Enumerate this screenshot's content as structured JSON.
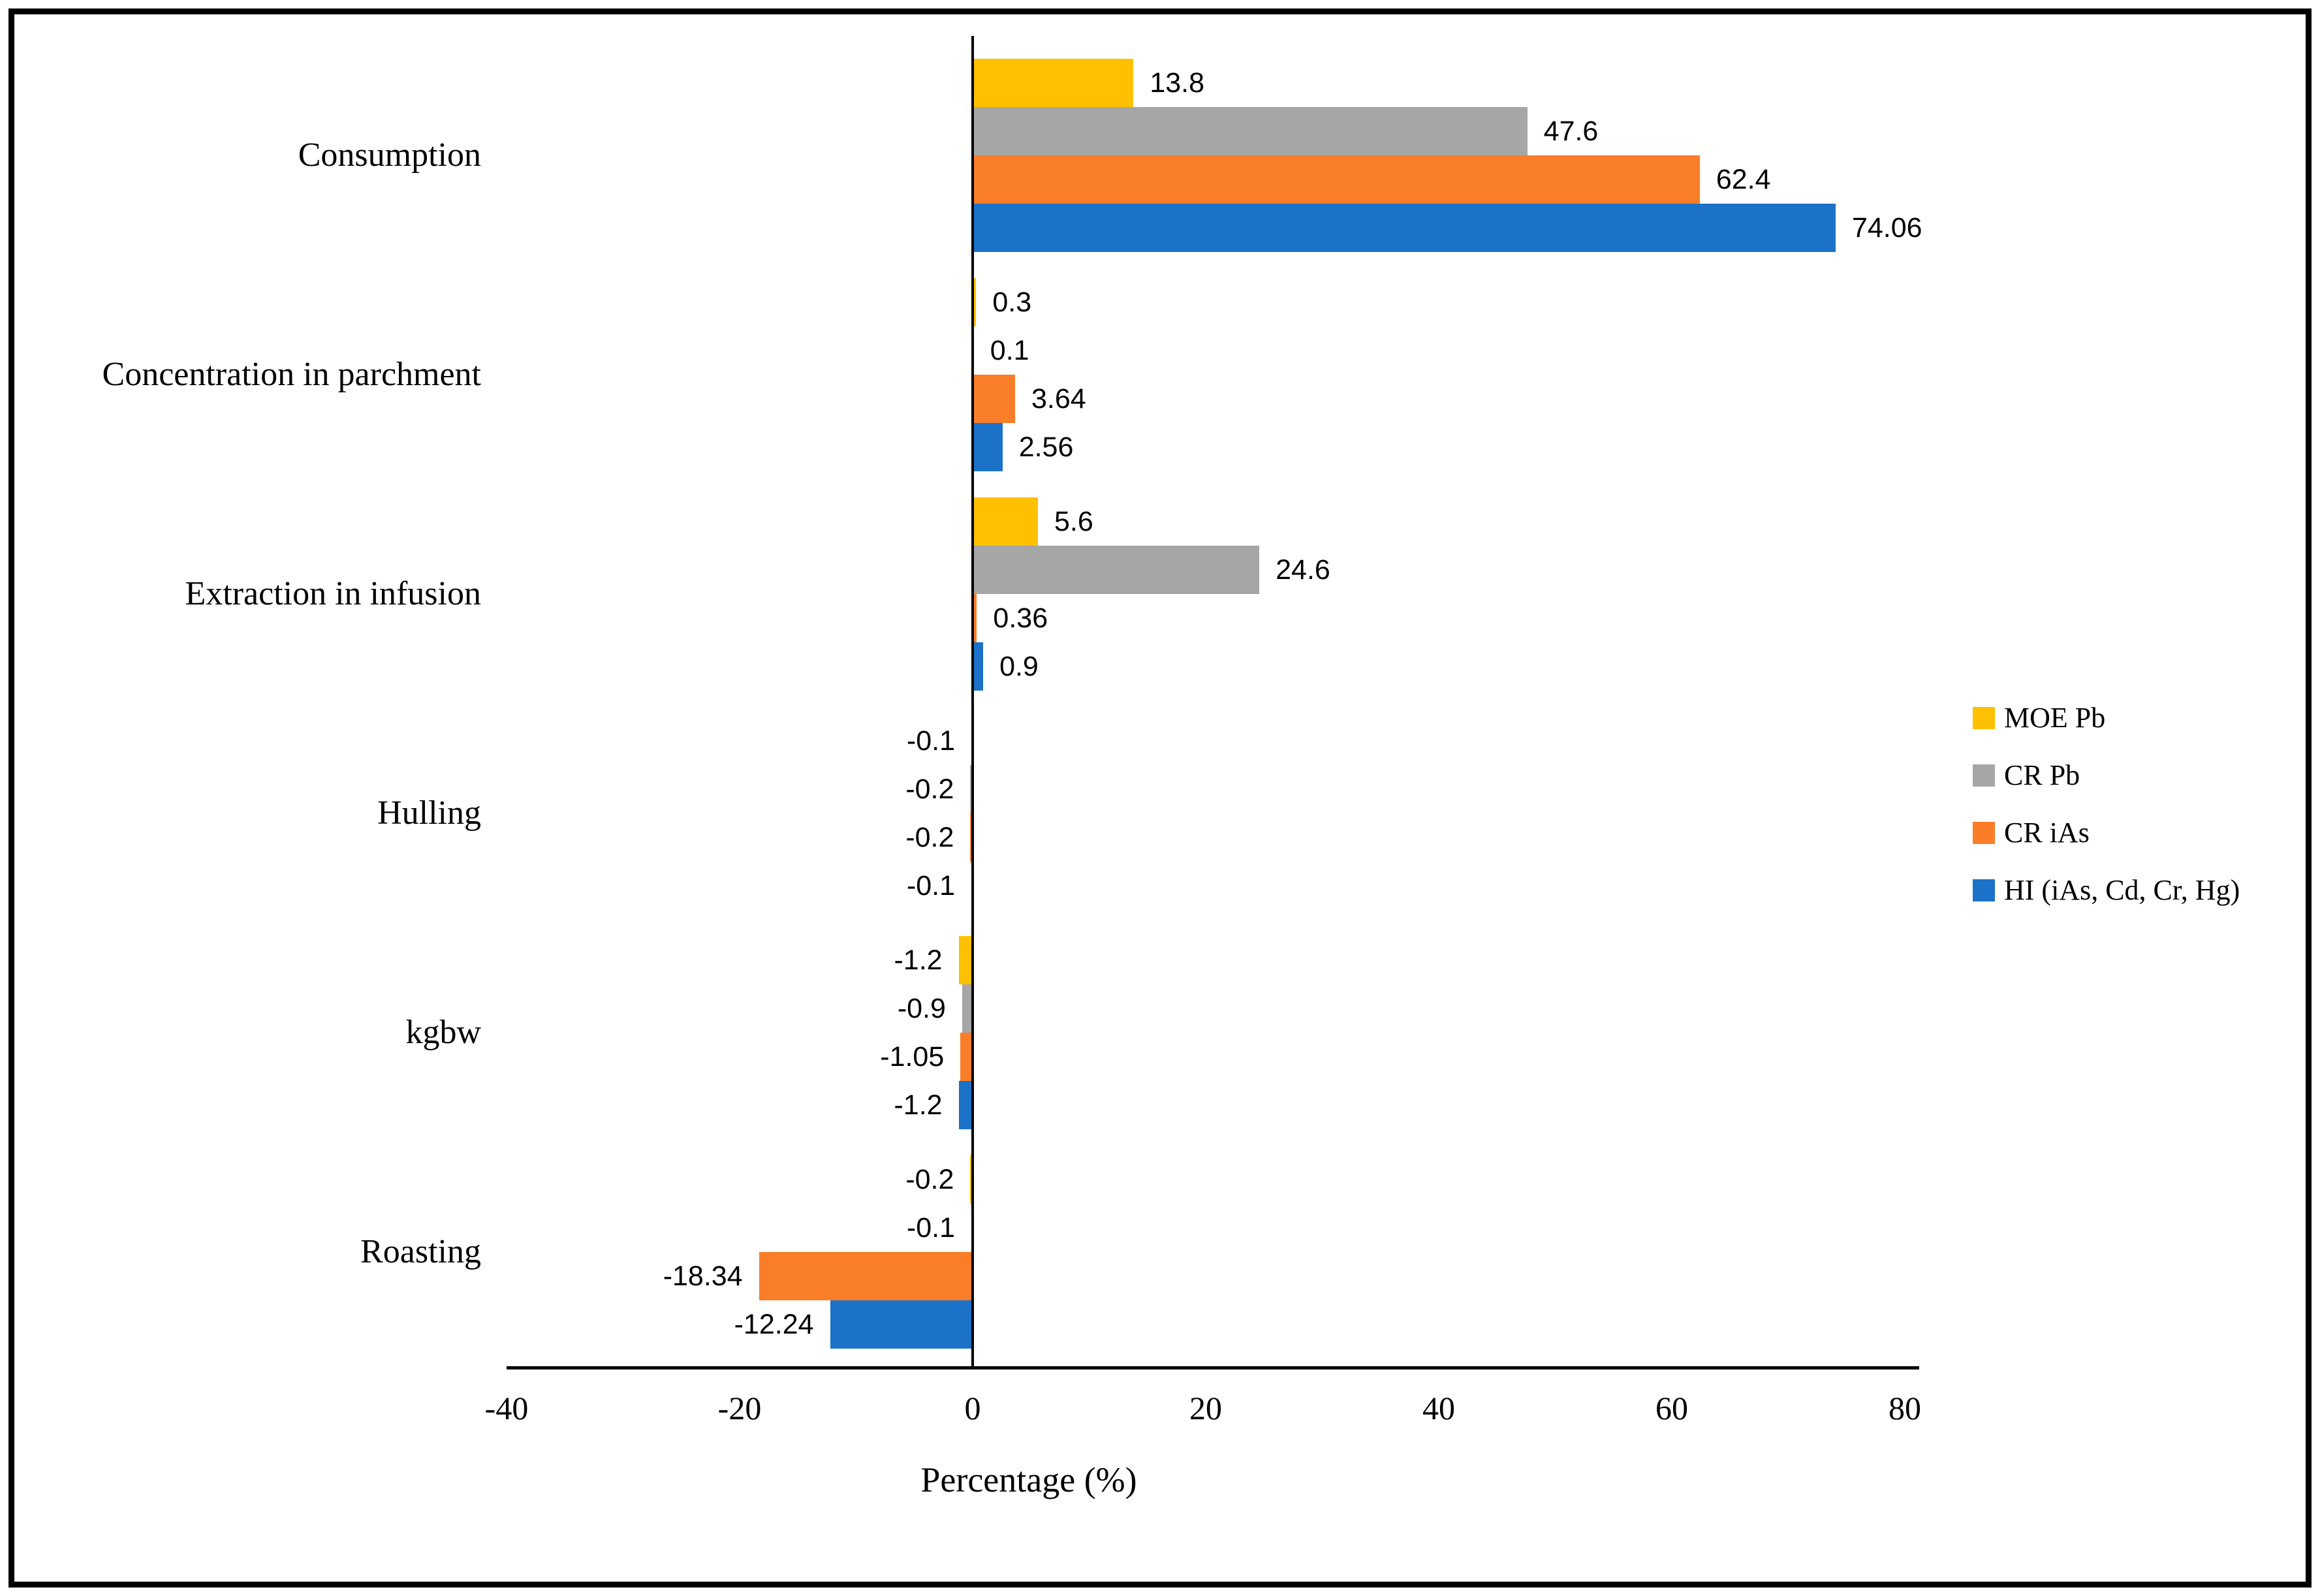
{
  "chart_data": {
    "type": "bar",
    "orientation": "horizontal",
    "title": "",
    "xlabel": "Percentage (%)",
    "ylabel": "",
    "xlim": [
      -40,
      80
    ],
    "x_ticks": [
      -40,
      -20,
      0,
      20,
      40,
      60,
      80
    ],
    "grid": false,
    "legend_position": "right",
    "categories": [
      "Consumption",
      "Concentration in parchment",
      "Extraction in infusion",
      "Hulling",
      "kgbw",
      "Roasting"
    ],
    "series": [
      {
        "name": "MOE Pb",
        "color": "#FFC000",
        "values": [
          13.8,
          0.3,
          5.6,
          -0.1,
          -1.2,
          -0.2
        ]
      },
      {
        "name": "CR Pb",
        "color": "#A6A6A6",
        "values": [
          47.6,
          0.1,
          24.6,
          -0.2,
          -0.9,
          -0.1
        ]
      },
      {
        "name": "CR iAs",
        "color": "#FA7D28",
        "values": [
          62.4,
          3.64,
          0.36,
          -0.2,
          -1.05,
          -18.34
        ]
      },
      {
        "name": "HI (iAs, Cd, Cr, Hg)",
        "color": "#1B72C8",
        "values": [
          74.06,
          2.56,
          0.9,
          -0.1,
          -1.2,
          -12.24
        ]
      }
    ],
    "data_labels_shown": true,
    "axis_color": "#000000"
  }
}
